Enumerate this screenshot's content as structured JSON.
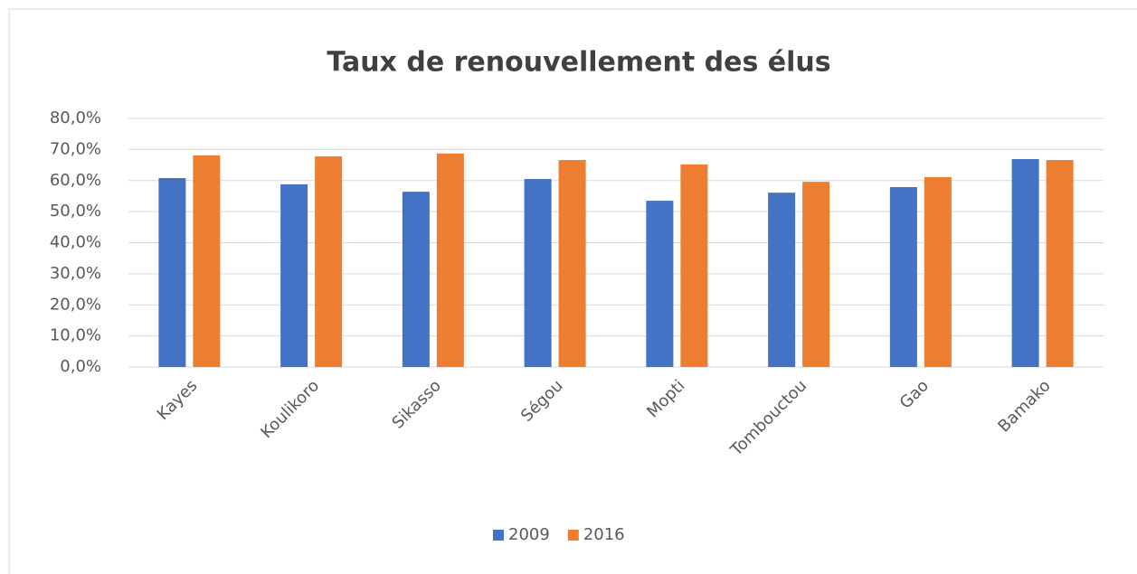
{
  "chart_data": {
    "type": "bar",
    "title": "Taux de renouvellement des élus",
    "categories": [
      "Kayes",
      "Koulikoro",
      "Sikasso",
      "Ségou",
      "Mopti",
      "Tombouctou",
      "Gao",
      "Bamako"
    ],
    "series": [
      {
        "name": "2009",
        "color": "#4472c4",
        "values": [
          60.8,
          58.8,
          56.4,
          60.5,
          53.5,
          56.1,
          57.9,
          66.9
        ]
      },
      {
        "name": "2016",
        "color": "#ed7d31",
        "values": [
          68.1,
          67.8,
          68.7,
          66.6,
          65.2,
          59.6,
          61.1,
          66.6
        ]
      }
    ],
    "ylim": [
      0,
      80
    ],
    "yticks": [
      {
        "value": 0,
        "label": "0,0%"
      },
      {
        "value": 10,
        "label": "10,0%"
      },
      {
        "value": 20,
        "label": "20,0%"
      },
      {
        "value": 30,
        "label": "30,0%"
      },
      {
        "value": 40,
        "label": "40,0%"
      },
      {
        "value": 50,
        "label": "50,0%"
      },
      {
        "value": 60,
        "label": "60,0%"
      },
      {
        "value": 70,
        "label": "70,0%"
      },
      {
        "value": 80,
        "label": "80,0%"
      }
    ],
    "grid": true,
    "legend": "bottom"
  }
}
